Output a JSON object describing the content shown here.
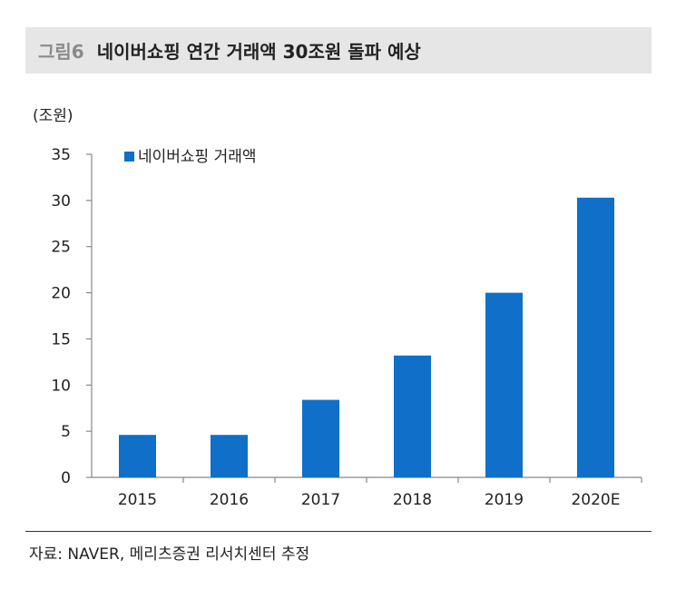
{
  "header": {
    "figure_label": "그림6",
    "title": "네이버쇼핑 연간 거래액 30조원 돌파 예상"
  },
  "chart_data": {
    "type": "bar",
    "title": "네이버쇼핑 연간 거래액 30조원 돌파 예상",
    "unit_label": "(조원)",
    "categories": [
      "2015",
      "2016",
      "2017",
      "2018",
      "2019",
      "2020E"
    ],
    "series": [
      {
        "name": "네이버쇼핑 거래액",
        "values": [
          4.6,
          4.6,
          8.4,
          13.2,
          20.0,
          30.3
        ],
        "color": "#0f6fc9"
      }
    ],
    "ylim": [
      0,
      35
    ],
    "yticks": [
      0,
      5,
      10,
      15,
      20,
      25,
      30,
      35
    ],
    "legend_position": "top-left",
    "grid": false
  },
  "footer": {
    "source": "자료: NAVER, 메리츠증권 리서치센터 추정"
  }
}
